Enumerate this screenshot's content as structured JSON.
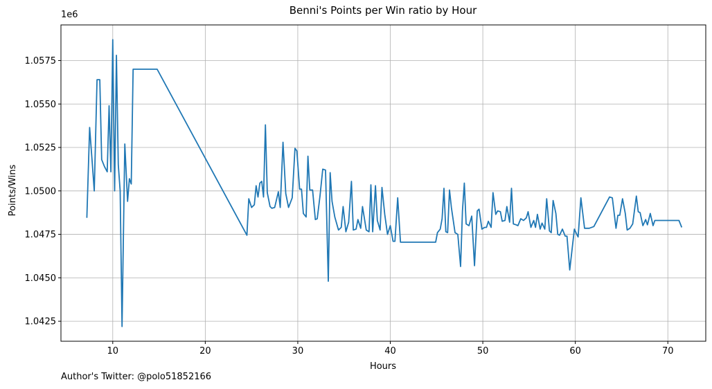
{
  "chart_data": {
    "type": "line",
    "title": "Benni's Points per Win ratio by Hour",
    "xlabel": "Hours",
    "ylabel": "Points/Wins",
    "y_offset_label": "1e6",
    "xlim": [
      4.4,
      74.1
    ],
    "ylim": [
      1.04135,
      1.05955
    ],
    "x_ticks": [
      10,
      20,
      30,
      40,
      50,
      60,
      70
    ],
    "y_ticks": [
      1.0425,
      1.045,
      1.0475,
      1.05,
      1.0525,
      1.055,
      1.0575
    ],
    "y_tick_labels": [
      "1.0425",
      "1.0450",
      "1.0475",
      "1.0500",
      "1.0525",
      "1.0550",
      "1.0575"
    ],
    "grid": true,
    "series_color": "#1f77b4",
    "x": [
      7.2,
      7.5,
      7.8,
      8.0,
      8.3,
      8.6,
      8.8,
      9.1,
      9.4,
      9.6,
      9.8,
      10.0,
      10.2,
      10.4,
      10.6,
      10.8,
      11.0,
      11.3,
      11.6,
      11.8,
      12.0,
      12.2,
      12.5,
      14.8,
      24.5,
      24.7,
      25.0,
      25.3,
      25.5,
      25.7,
      25.9,
      26.1,
      26.3,
      26.5,
      26.7,
      27.0,
      27.2,
      27.5,
      27.9,
      28.1,
      28.4,
      28.7,
      29.0,
      29.4,
      29.7,
      29.9,
      30.2,
      30.4,
      30.6,
      30.9,
      31.1,
      31.3,
      31.6,
      31.9,
      32.1,
      32.4,
      32.7,
      33.0,
      33.3,
      33.5,
      33.7,
      34.0,
      34.4,
      34.7,
      34.9,
      35.2,
      35.5,
      35.8,
      36.0,
      36.3,
      36.5,
      36.8,
      37.0,
      37.4,
      37.7,
      37.9,
      38.1,
      38.4,
      38.6,
      38.9,
      39.1,
      39.4,
      39.7,
      40.0,
      40.3,
      40.5,
      40.8,
      41.1,
      44.9,
      45.1,
      45.4,
      45.6,
      45.8,
      46.0,
      46.2,
      46.4,
      46.6,
      47.0,
      47.3,
      47.6,
      47.8,
      48.0,
      48.2,
      48.5,
      48.8,
      49.1,
      49.4,
      49.6,
      49.9,
      50.2,
      50.4,
      50.6,
      50.9,
      51.1,
      51.4,
      51.6,
      51.9,
      52.1,
      52.4,
      52.6,
      52.9,
      53.1,
      53.3,
      53.6,
      53.8,
      54.1,
      54.4,
      54.7,
      54.9,
      55.2,
      55.5,
      55.7,
      55.9,
      56.2,
      56.4,
      56.7,
      56.9,
      57.2,
      57.4,
      57.6,
      57.9,
      58.1,
      58.3,
      58.6,
      58.9,
      59.1,
      59.4,
      59.9,
      60.2,
      60.3,
      60.6,
      61.0,
      61.2,
      61.5,
      62.0,
      63.7,
      64.0,
      64.4,
      64.6,
      64.8,
      65.1,
      65.4,
      65.6,
      65.9,
      66.2,
      66.6,
      66.8,
      67.0,
      67.3,
      67.6,
      67.8,
      68.1,
      68.4,
      68.6,
      71.2,
      71.5
    ],
    "values": [
      1.04845,
      1.05365,
      1.0515,
      1.05,
      1.0564,
      1.0564,
      1.0518,
      1.0514,
      1.0511,
      1.0549,
      1.0511,
      1.0587,
      1.05,
      1.0578,
      1.0515,
      1.05,
      1.0422,
      1.0527,
      1.0494,
      1.0507,
      1.0504,
      1.057,
      1.057,
      1.057,
      1.04745,
      1.04955,
      1.04905,
      1.0492,
      1.0503,
      1.04965,
      1.05045,
      1.05055,
      1.04965,
      1.0538,
      1.0499,
      1.0491,
      1.049,
      1.04905,
      1.04995,
      1.04905,
      1.0528,
      1.04985,
      1.04905,
      1.0496,
      1.05245,
      1.0523,
      1.0501,
      1.0501,
      1.0487,
      1.0485,
      1.052,
      1.05005,
      1.05005,
      1.04835,
      1.0484,
      1.0497,
      1.05125,
      1.0512,
      1.0448,
      1.05105,
      1.0494,
      1.0485,
      1.04775,
      1.0479,
      1.0491,
      1.04765,
      1.0482,
      1.05055,
      1.04775,
      1.0478,
      1.04835,
      1.04785,
      1.0491,
      1.04775,
      1.04765,
      1.05035,
      1.04765,
      1.0503,
      1.0483,
      1.04775,
      1.0502,
      1.04865,
      1.0475,
      1.048,
      1.0471,
      1.0471,
      1.0496,
      1.04705,
      1.04705,
      1.0476,
      1.0478,
      1.0484,
      1.05015,
      1.04765,
      1.0476,
      1.05005,
      1.04905,
      1.0476,
      1.0475,
      1.04565,
      1.04885,
      1.05045,
      1.0481,
      1.048,
      1.04855,
      1.0457,
      1.04885,
      1.04895,
      1.0478,
      1.0479,
      1.0479,
      1.04825,
      1.0479,
      1.0499,
      1.04865,
      1.04885,
      1.0488,
      1.04825,
      1.0483,
      1.0491,
      1.0482,
      1.05015,
      1.0481,
      1.04805,
      1.048,
      1.0484,
      1.0483,
      1.04845,
      1.0488,
      1.0479,
      1.0483,
      1.0479,
      1.04865,
      1.0478,
      1.04815,
      1.0478,
      1.04955,
      1.0477,
      1.0476,
      1.04945,
      1.0487,
      1.0475,
      1.04745,
      1.0478,
      1.0474,
      1.0474,
      1.04545,
      1.0478,
      1.04745,
      1.04735,
      1.0496,
      1.04785,
      1.04785,
      1.04785,
      1.04795,
      1.04965,
      1.0496,
      1.04785,
      1.0486,
      1.0486,
      1.04955,
      1.0487,
      1.04775,
      1.04785,
      1.0481,
      1.0497,
      1.0488,
      1.04875,
      1.048,
      1.04835,
      1.04805,
      1.0487,
      1.048,
      1.0483,
      1.0483,
      1.0479
    ]
  },
  "footer": {
    "note": "Author's Twitter: @polo51852166"
  }
}
